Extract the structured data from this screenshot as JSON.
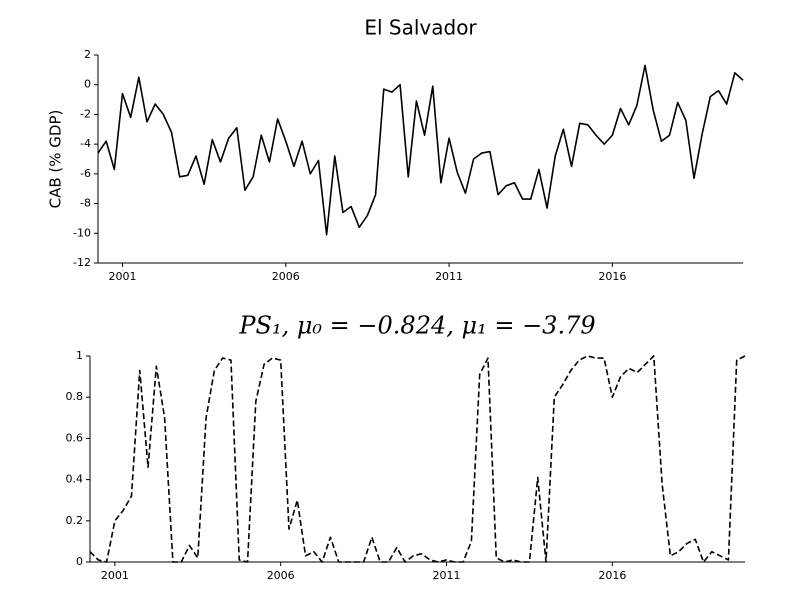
{
  "chart_data": [
    {
      "type": "line",
      "title": "El Salvador",
      "ylabel": "CAB (% GDP)",
      "color": "#000000",
      "linestyle": "solid",
      "x": [
        2000.25,
        2000.5,
        2000.75,
        2001,
        2001.25,
        2001.5,
        2001.75,
        2002,
        2002.25,
        2002.5,
        2002.75,
        2003,
        2003.25,
        2003.5,
        2003.75,
        2004,
        2004.25,
        2004.5,
        2004.75,
        2005,
        2005.25,
        2005.5,
        2005.75,
        2006,
        2006.25,
        2006.5,
        2006.75,
        2007,
        2007.25,
        2007.5,
        2007.75,
        2008,
        2008.25,
        2008.5,
        2008.75,
        2009,
        2009.25,
        2009.5,
        2009.75,
        2010,
        2010.25,
        2010.5,
        2010.75,
        2011,
        2011.25,
        2011.5,
        2011.75,
        2012,
        2012.25,
        2012.5,
        2012.75,
        2013,
        2013.25,
        2013.5,
        2013.75,
        2014,
        2014.25,
        2014.5,
        2014.75,
        2015,
        2015.25,
        2015.5,
        2015.75,
        2016,
        2016.25,
        2016.5,
        2016.75,
        2017,
        2017.25,
        2017.5,
        2017.75,
        2018,
        2018.25,
        2018.5,
        2018.75,
        2019,
        2019.25,
        2019.5,
        2019.75,
        2020
      ],
      "values": [
        -4.6,
        -3.8,
        -5.7,
        -0.6,
        -2.2,
        0.5,
        -2.5,
        -1.3,
        -2.0,
        -3.2,
        -6.2,
        -6.1,
        -4.8,
        -6.7,
        -3.7,
        -5.2,
        -3.6,
        -2.9,
        -7.1,
        -6.2,
        -3.4,
        -5.2,
        -2.3,
        -3.8,
        -5.5,
        -3.8,
        -6.0,
        -5.1,
        -10.1,
        -4.8,
        -8.6,
        -8.2,
        -9.6,
        -8.8,
        -7.4,
        -0.3,
        -0.5,
        0.0,
        -6.2,
        -1.1,
        -3.4,
        -0.1,
        -6.6,
        -3.6,
        -5.9,
        -7.3,
        -5.0,
        -4.6,
        -4.5,
        -7.4,
        -6.8,
        -6.6,
        -7.7,
        -7.7,
        -5.7,
        -8.3,
        -4.8,
        -3.0,
        -5.5,
        -2.6,
        -2.7,
        -3.4,
        -4.0,
        -3.4,
        -1.6,
        -2.7,
        -1.4,
        1.3,
        -1.7,
        -3.8,
        -3.4,
        -1.2,
        -2.4,
        -6.3,
        -3.3,
        -0.8,
        -0.4,
        -1.3,
        0.8,
        0.3
      ],
      "xlim": [
        2000.25,
        2020
      ],
      "xticks": [
        2001,
        2006,
        2011,
        2016
      ],
      "ylim": [
        -12,
        2
      ],
      "yticks": [
        2,
        0,
        -2,
        -4,
        -6,
        -8,
        -10,
        -12
      ]
    },
    {
      "type": "line",
      "title": "PS₁, μ₀ = −0.824, μ₁ = −3.79",
      "color": "#000000",
      "linestyle": "dashed",
      "x": [
        2000.25,
        2000.5,
        2000.75,
        2001,
        2001.25,
        2001.5,
        2001.75,
        2002,
        2002.25,
        2002.5,
        2002.75,
        2003,
        2003.25,
        2003.5,
        2003.75,
        2004,
        2004.25,
        2004.5,
        2004.75,
        2005,
        2005.25,
        2005.5,
        2005.75,
        2006,
        2006.25,
        2006.5,
        2006.75,
        2007,
        2007.25,
        2007.5,
        2007.75,
        2008,
        2008.25,
        2008.5,
        2008.75,
        2009,
        2009.25,
        2009.5,
        2009.75,
        2010,
        2010.25,
        2010.5,
        2010.75,
        2011,
        2011.25,
        2011.5,
        2011.75,
        2012,
        2012.25,
        2012.5,
        2012.75,
        2013,
        2013.25,
        2013.5,
        2013.75,
        2014,
        2014.25,
        2014.5,
        2014.75,
        2015,
        2015.25,
        2015.5,
        2015.75,
        2016,
        2016.25,
        2016.5,
        2016.75,
        2017,
        2017.25,
        2017.5,
        2017.75,
        2018,
        2018.25,
        2018.5,
        2018.75,
        2019,
        2019.25,
        2019.5,
        2019.75,
        2020
      ],
      "values": [
        0.05,
        0.01,
        0.0,
        0.2,
        0.25,
        0.32,
        0.93,
        0.46,
        0.95,
        0.7,
        0.0,
        0.0,
        0.08,
        0.02,
        0.7,
        0.93,
        0.99,
        0.98,
        0.01,
        0.0,
        0.78,
        0.96,
        0.99,
        0.98,
        0.16,
        0.3,
        0.03,
        0.05,
        0.0,
        0.12,
        0.0,
        0.0,
        0.0,
        0.0,
        0.12,
        0.0,
        0.0,
        0.07,
        0.0,
        0.03,
        0.04,
        0.01,
        0.0,
        0.01,
        0.0,
        0.0,
        0.1,
        0.91,
        0.99,
        0.02,
        0.0,
        0.01,
        0.0,
        0.0,
        0.41,
        0.0,
        0.8,
        0.86,
        0.93,
        0.98,
        1.0,
        0.99,
        0.99,
        0.8,
        0.9,
        0.94,
        0.92,
        0.96,
        1.0,
        0.38,
        0.03,
        0.05,
        0.09,
        0.11,
        0.0,
        0.05,
        0.03,
        0.01,
        0.98,
        1.0
      ],
      "xlim": [
        2000.25,
        2020
      ],
      "xticks": [
        2001,
        2006,
        2011,
        2016
      ],
      "ylim": [
        0,
        1
      ],
      "yticks": [
        1,
        0.8,
        0.6,
        0.4,
        0.2,
        0
      ]
    }
  ]
}
